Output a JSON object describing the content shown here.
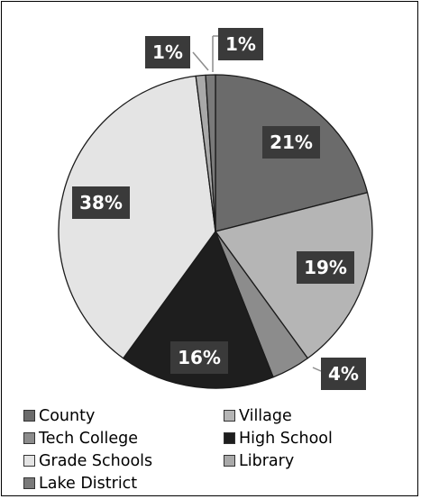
{
  "chart_data": {
    "type": "pie",
    "categories": [
      "County",
      "Village",
      "Tech College",
      "High School",
      "Grade Schools",
      "Library",
      "Lake District"
    ],
    "values": [
      21,
      19,
      4,
      16,
      38,
      1,
      1
    ],
    "data_labels": [
      "21%",
      "19%",
      "4%",
      "16%",
      "38%",
      "1%",
      "1%"
    ],
    "colors": [
      "#6b6b6b",
      "#b5b5b5",
      "#8c8c8c",
      "#1e1e1e",
      "#e4e4e4",
      "#a9a9a9",
      "#7a7a7a"
    ],
    "legend_position": "bottom",
    "title": ""
  },
  "label_style": {
    "fill": "#3a3a3a",
    "text_color": "#ffffff"
  }
}
